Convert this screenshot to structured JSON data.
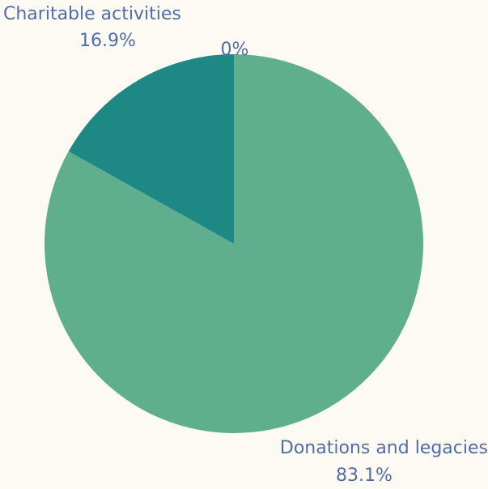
{
  "chart_data": {
    "type": "pie",
    "slices": [
      {
        "label": "Donations and legacies",
        "value": 83.1,
        "percent_label": "83.1%",
        "color": "#5fae8e"
      },
      {
        "label": "Charitable activities",
        "value": 16.9,
        "percent_label": "16.9%",
        "color": "#1d8884"
      },
      {
        "label": "",
        "value": 0,
        "percent_label": "0%",
        "color": "#1d8884"
      }
    ],
    "title": "",
    "label_color": "#4f6ea8",
    "background": "#fdfaf3"
  }
}
